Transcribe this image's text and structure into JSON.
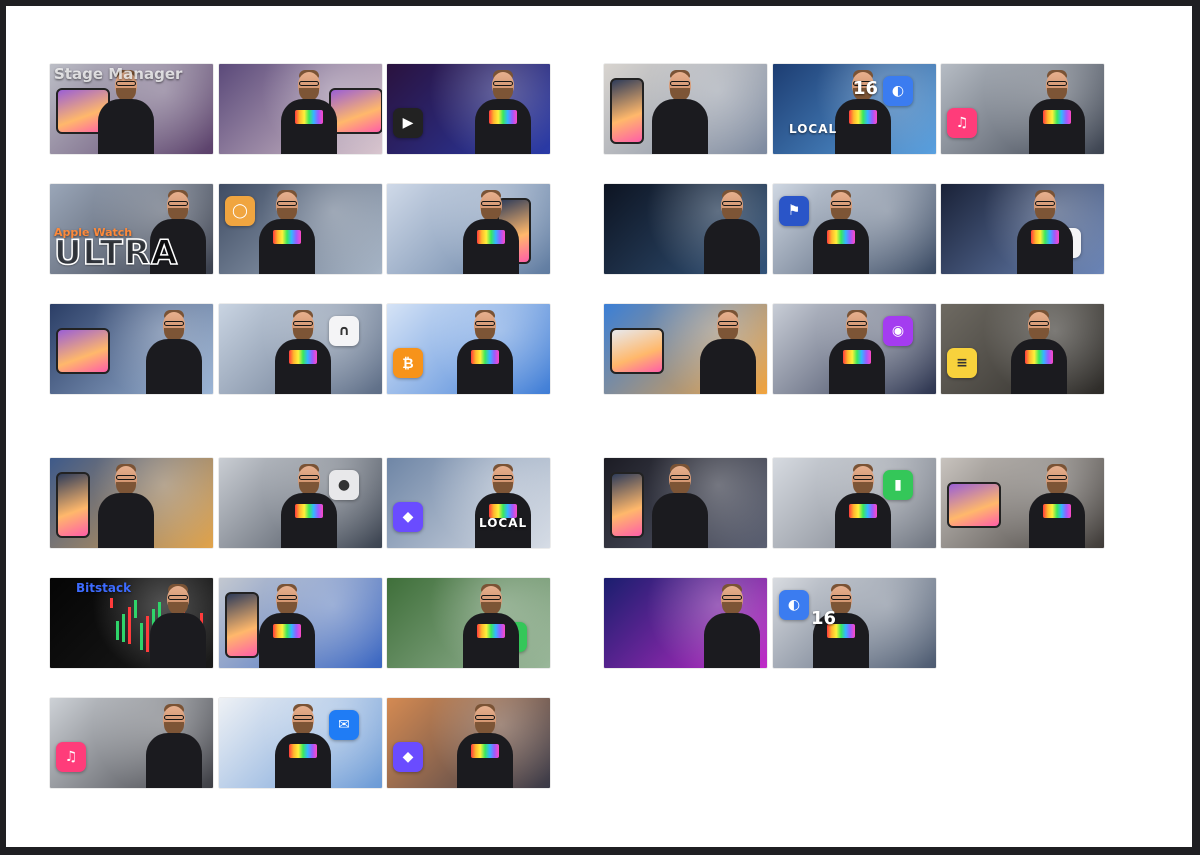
{
  "thumbnail_groups": [
    {
      "id": "top-left",
      "thumbnails": [
        {
          "overlay_text": "Stage Manager",
          "style": "stage",
          "colors": [
            "#bcbec6",
            "#5a3f6a"
          ],
          "icon": "ipad-icon"
        },
        {
          "overlay_text": "",
          "colors": [
            "#5b4a7a",
            "#d9c6cf"
          ],
          "icon": "ipad-icon"
        },
        {
          "overlay_text": "",
          "colors": [
            "#2a123e",
            "#2a3ba8"
          ],
          "icon": "apple-tv-icon"
        },
        {
          "overlay_text": "Apple Watch",
          "overlay_text_2": "ULTRA",
          "style": "ultra",
          "colors": [
            "#9aa6b8",
            "#3a3f4c"
          ],
          "icon": "mountain-icon"
        },
        {
          "overlay_text": "",
          "colors": [
            "#3f4c63",
            "#a7b5c6"
          ],
          "icon": "apple-watch-icon"
        },
        {
          "overlay_text": "",
          "colors": [
            "#cfd9e8",
            "#5f7ba0"
          ],
          "icon": "iphone-icon"
        },
        {
          "overlay_text": "",
          "colors": [
            "#2b3e66",
            "#9db6d6"
          ],
          "icon": "ipad-icon"
        },
        {
          "overlay_text": "",
          "colors": [
            "#c9d4e2",
            "#5d6d86"
          ],
          "icon": "airpods-icon"
        },
        {
          "overlay_text": "",
          "colors": [
            "#d5e3f6",
            "#3f7dd6"
          ],
          "icon": "bitcoin-icon"
        }
      ]
    },
    {
      "id": "top-right",
      "thumbnails": [
        {
          "overlay_text": "",
          "colors": [
            "#d8d4cf",
            "#7d8aa0"
          ],
          "icon": "iphone-icon"
        },
        {
          "overlay_text": "LOCAL",
          "overlay_text_2": "16",
          "style": "local16",
          "colors": [
            "#1d3d72",
            "#5aa1e0"
          ],
          "icon": "ios16-icon"
        },
        {
          "overlay_text": "",
          "colors": [
            "#b6bcc4",
            "#3c4350"
          ],
          "icon": "music-icon"
        },
        {
          "overlay_text": "",
          "colors": [
            "#0d1422",
            "#33547a"
          ],
          "icon": "apple-watch-icon"
        },
        {
          "overlay_text": "",
          "colors": [
            "#cfd7e2",
            "#3a4a63"
          ],
          "icon": "flag-icon"
        },
        {
          "overlay_text": "",
          "colors": [
            "#1a2238",
            "#6c86b8"
          ],
          "icon": "airpods-icon"
        },
        {
          "overlay_text": "",
          "colors": [
            "#3b7fd6",
            "#f2a43e"
          ],
          "icon": "macbook-icon"
        },
        {
          "overlay_text": "",
          "colors": [
            "#c8cdd6",
            "#2d3550"
          ],
          "icon": "podcast-icon"
        },
        {
          "overlay_text": "",
          "colors": [
            "#6e6a62",
            "#2d2b28"
          ],
          "icon": "notes-icon"
        }
      ]
    },
    {
      "id": "bottom-left",
      "thumbnails": [
        {
          "overlay_text": "",
          "colors": [
            "#3e5a8a",
            "#e2a44b"
          ],
          "icon": "iphone-icon"
        },
        {
          "overlay_text": "",
          "colors": [
            "#c9cdd3",
            "#3b4350"
          ],
          "icon": "homepod-icon"
        },
        {
          "overlay_text": "LOCAL",
          "style": "local",
          "colors": [
            "#6f86a6",
            "#d7dde6"
          ],
          "icon": "shortcuts-icon"
        },
        {
          "overlay_text": "Bitstack",
          "style": "bitstack",
          "colors": [
            "#050505",
            "#1b1b1b"
          ],
          "icon": "bitcoin-icon"
        },
        {
          "overlay_text": "",
          "colors": [
            "#c3c8d0",
            "#3a66c2"
          ],
          "icon": "iphone-icon"
        },
        {
          "overlay_text": "",
          "colors": [
            "#3f6f3a",
            "#9ab79a"
          ],
          "icon": "messages-icon"
        },
        {
          "overlay_text": "",
          "colors": [
            "#cdd1d6",
            "#3d3e44"
          ],
          "icon": "music-icon"
        },
        {
          "overlay_text": "",
          "colors": [
            "#eef1f5",
            "#6b9ad6"
          ],
          "icon": "mail-icon"
        },
        {
          "overlay_text": "",
          "colors": [
            "#d48a52",
            "#3a3a48"
          ],
          "icon": "shortcuts-icon"
        }
      ]
    },
    {
      "id": "bottom-right",
      "thumbnails": [
        {
          "overlay_text": "",
          "colors": [
            "#1c1c24",
            "#5b6072"
          ],
          "icon": "iphone-icon"
        },
        {
          "overlay_text": "",
          "colors": [
            "#d6dae0",
            "#6f7580"
          ],
          "icon": "battery-icon"
        },
        {
          "overlay_text": "",
          "colors": [
            "#c8c3be",
            "#3f3b38"
          ],
          "icon": "ipad-icon"
        },
        {
          "overlay_text": "",
          "colors": [
            "#1a1e6e",
            "#c02cc8"
          ],
          "icon": "airpods-icon"
        },
        {
          "overlay_text": "16",
          "style": "ios16",
          "colors": [
            "#d8dbe0",
            "#4c5a70"
          ],
          "icon": "ios16-icon"
        }
      ]
    }
  ]
}
